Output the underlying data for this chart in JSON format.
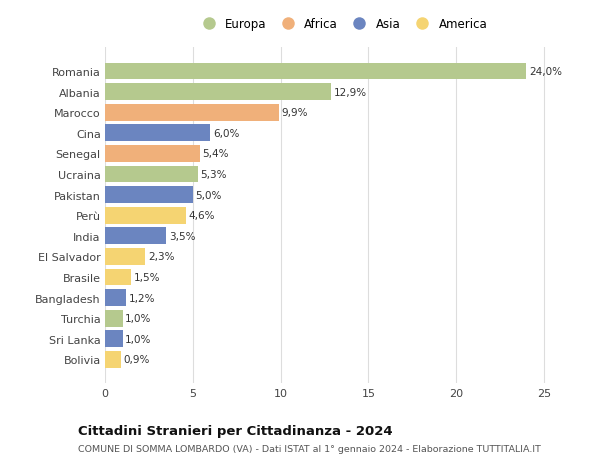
{
  "categories": [
    "Romania",
    "Albania",
    "Marocco",
    "Cina",
    "Senegal",
    "Ucraina",
    "Pakistan",
    "Perù",
    "India",
    "El Salvador",
    "Brasile",
    "Bangladesh",
    "Turchia",
    "Sri Lanka",
    "Bolivia"
  ],
  "values": [
    24.0,
    12.9,
    9.9,
    6.0,
    5.4,
    5.3,
    5.0,
    4.6,
    3.5,
    2.3,
    1.5,
    1.2,
    1.0,
    1.0,
    0.9
  ],
  "labels": [
    "24,0%",
    "12,9%",
    "9,9%",
    "6,0%",
    "5,4%",
    "5,3%",
    "5,0%",
    "4,6%",
    "3,5%",
    "2,3%",
    "1,5%",
    "1,2%",
    "1,0%",
    "1,0%",
    "0,9%"
  ],
  "continent": [
    "Europa",
    "Europa",
    "Africa",
    "Asia",
    "Africa",
    "Europa",
    "Asia",
    "America",
    "Asia",
    "America",
    "America",
    "Asia",
    "Europa",
    "Asia",
    "America"
  ],
  "colors": {
    "Europa": "#b5c98e",
    "Africa": "#f0b07a",
    "Asia": "#6b85c0",
    "America": "#f5d472"
  },
  "legend_order": [
    "Europa",
    "Africa",
    "Asia",
    "America"
  ],
  "xlim": [
    0,
    27
  ],
  "xticks": [
    0,
    5,
    10,
    15,
    20,
    25
  ],
  "title": "Cittadini Stranieri per Cittadinanza - 2024",
  "subtitle": "COMUNE DI SOMMA LOMBARDO (VA) - Dati ISTAT al 1° gennaio 2024 - Elaborazione TUTTITALIA.IT",
  "background_color": "#ffffff",
  "grid_color": "#dddddd",
  "bar_height": 0.82
}
